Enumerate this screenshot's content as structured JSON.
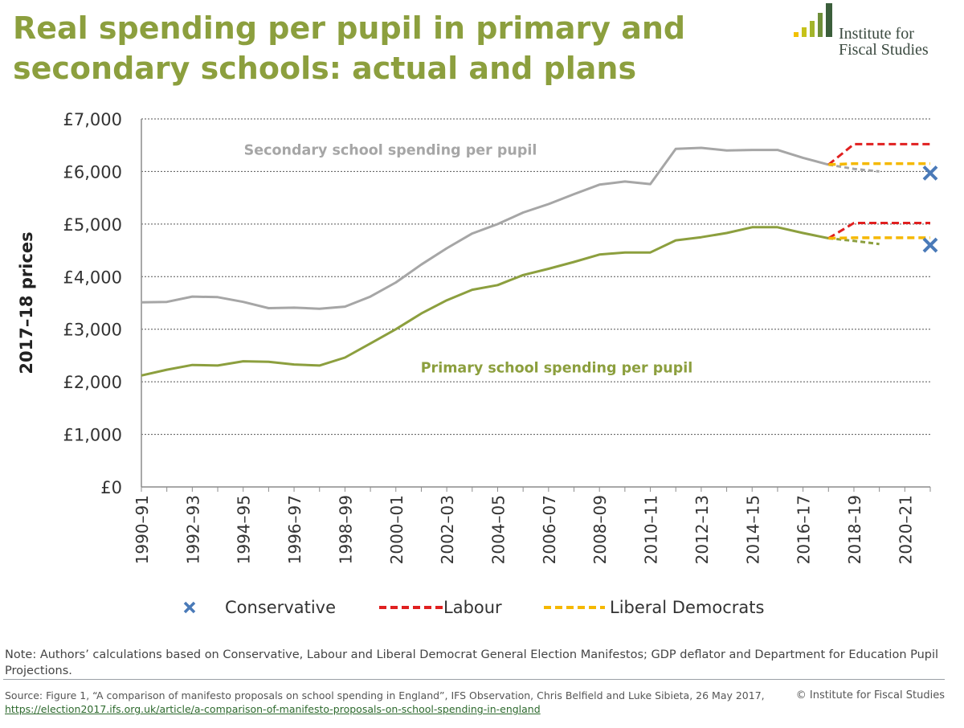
{
  "header": {
    "title_line1": "Real spending per pupil in primary and",
    "title_line2": "secondary schools: actual and plans",
    "logo_line1": "Institute for",
    "logo_line2": "Fiscal Studies"
  },
  "colors": {
    "title": "#8c9f3e",
    "secondary": "#a6a6a6",
    "primary": "#8c9f3e",
    "labour": "#e02020",
    "libdem": "#f5b800",
    "conservative": "#4a7ab8",
    "logo_green": "#3b5e3b",
    "logo_olive": "#a3b52a",
    "logo_yellow": "#f2c100"
  },
  "chart_data": {
    "type": "line",
    "ylabel": "2017–18 prices",
    "xlabel": "",
    "ylim": [
      0,
      7000
    ],
    "yticks": [
      0,
      1000,
      2000,
      3000,
      4000,
      5000,
      6000,
      7000
    ],
    "ytick_labels": [
      "£0",
      "£1,000",
      "£2,000",
      "£3,000",
      "£4,000",
      "£5,000",
      "£6,000",
      "£7,000"
    ],
    "categories": [
      "1990–91",
      "1991–92",
      "1992–93",
      "1993–94",
      "1994–95",
      "1995–96",
      "1996–97",
      "1997–98",
      "1998–99",
      "1999–00",
      "2000–01",
      "2001–02",
      "2002–03",
      "2003–04",
      "2004–05",
      "2005–06",
      "2006–07",
      "2007–08",
      "2008–09",
      "2009–10",
      "2010–11",
      "2011–12",
      "2012–13",
      "2013–14",
      "2014–15",
      "2015–16",
      "2016–17",
      "2017–18",
      "2018–19",
      "2019–20",
      "2020–21",
      "2021–22"
    ],
    "tick_labels": [
      "1990–91",
      "1992–93",
      "1994–95",
      "1996–97",
      "1998–99",
      "2000–01",
      "2002–03",
      "2004–05",
      "2006–07",
      "2008–09",
      "2010–11",
      "2012–13",
      "2014–15",
      "2016–17",
      "2018–19",
      "2020–21"
    ],
    "grid": "horizontal dashed",
    "annotations": {
      "secondary": "Secondary school spending per pupil",
      "primary": "Primary school spending per pupil"
    },
    "series": [
      {
        "name": "Secondary school spending per pupil",
        "style": "solid",
        "x": [
          "1990–91",
          "1991–92",
          "1992–93",
          "1993–94",
          "1994–95",
          "1995–96",
          "1996–97",
          "1997–98",
          "1998–99",
          "1999–00",
          "2000–01",
          "2001–02",
          "2002–03",
          "2003–04",
          "2004–05",
          "2005–06",
          "2006–07",
          "2007–08",
          "2008–09",
          "2009–10",
          "2010–11",
          "2011–12",
          "2012–13",
          "2013–14",
          "2014–15",
          "2015–16",
          "2016–17",
          "2017–18"
        ],
        "values": [
          3510,
          3520,
          3620,
          3610,
          3520,
          3400,
          3410,
          3390,
          3430,
          3620,
          3890,
          4230,
          4540,
          4820,
          5000,
          5220,
          5380,
          5570,
          5750,
          5810,
          5760,
          6430,
          6450,
          6400,
          6410,
          6410,
          6260,
          6130
        ]
      },
      {
        "name": "Primary school spending per pupil",
        "style": "solid",
        "x": [
          "1990–91",
          "1991–92",
          "1992–93",
          "1993–94",
          "1994–95",
          "1995–96",
          "1996–97",
          "1997–98",
          "1998–99",
          "1999–00",
          "2000–01",
          "2001–02",
          "2002–03",
          "2003–04",
          "2004–05",
          "2005–06",
          "2006–07",
          "2007–08",
          "2008–09",
          "2009–10",
          "2010–11",
          "2011–12",
          "2012–13",
          "2013–14",
          "2014–15",
          "2015–16",
          "2016–17",
          "2017–18"
        ],
        "values": [
          2120,
          2230,
          2320,
          2310,
          2390,
          2380,
          2330,
          2310,
          2460,
          2730,
          3000,
          3300,
          3550,
          3750,
          3840,
          4030,
          4150,
          4280,
          4420,
          4460,
          4460,
          4690,
          4750,
          4830,
          4940,
          4940,
          4830,
          4730
        ]
      },
      {
        "name": "Secondary baseline projection",
        "style": "dashed",
        "x": [
          "2017–18",
          "2018–19",
          "2019–20"
        ],
        "values": [
          6130,
          6050,
          6000
        ]
      },
      {
        "name": "Primary baseline projection",
        "style": "dashed",
        "x": [
          "2017–18",
          "2018–19",
          "2019–20"
        ],
        "values": [
          4730,
          4680,
          4620
        ]
      },
      {
        "name": "Labour",
        "style": "dashed",
        "x": [
          "2017–18",
          "2018–19",
          "2019–20",
          "2020–21",
          "2021–22"
        ],
        "secondary_values": [
          6130,
          6520,
          6520,
          6520,
          6520
        ],
        "primary_values": [
          4730,
          5020,
          5020,
          5020,
          5020
        ]
      },
      {
        "name": "Liberal Democrats",
        "style": "dashed",
        "x": [
          "2017–18",
          "2018–19",
          "2019–20",
          "2020–21",
          "2021–22"
        ],
        "secondary_values": [
          6130,
          6150,
          6150,
          6150,
          6150
        ],
        "primary_values": [
          4730,
          4740,
          4740,
          4740,
          4740
        ]
      },
      {
        "name": "Conservative",
        "style": "marker",
        "x": [
          "2021–22"
        ],
        "secondary_values": [
          5970
        ],
        "primary_values": [
          4600
        ]
      }
    ],
    "legend": {
      "placement": "bottom",
      "entries": [
        "Conservative",
        "Labour",
        "Liberal Democrats"
      ]
    }
  },
  "note": "Note: Authors’ calculations based on Conservative, Labour and Liberal Democrat General Election Manifestos; GDP deflator and Department for Education Pupil Projections.",
  "source": {
    "text": "Source: Figure 1, “A comparison of manifesto proposals on school spending in England”, IFS Observation, Chris Belfield and Luke Sibieta, 26 May 2017, ",
    "link": "https://election2017.ifs.org.uk/article/a-comparison-of-manifesto-proposals-on-school-spending-in-england"
  },
  "copyright": "© Institute for Fiscal Studies"
}
